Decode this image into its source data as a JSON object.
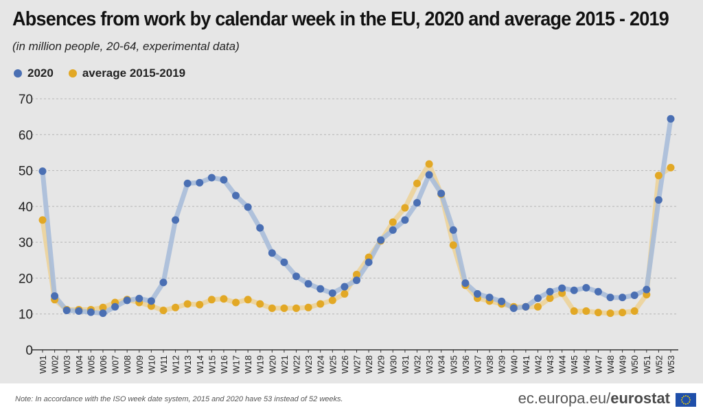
{
  "title": "Absences from work by calendar week in the EU, 2020 and average 2015 - 2019",
  "subtitle": "(in million people, 20-64, experimental data)",
  "note": "Note: In accordance with the ISO week date system, 2015 and 2020 have 53 instead of 52 weeks.",
  "brand": {
    "part1": "ec.europa.eu/",
    "part2": "eurostat"
  },
  "colors": {
    "s2020": "#4a6fb3",
    "avg": "#e2a825",
    "s2020_line": "#a9bcd9",
    "avg_line": "#ecd39a",
    "grid": "#b5b5b5"
  },
  "chart_data": {
    "type": "line",
    "title": "Absences from work by calendar week in the EU, 2020 and average 2015 - 2019",
    "xlabel": "",
    "ylabel": "",
    "ylim": [
      0,
      70
    ],
    "yticks": [
      0,
      10,
      20,
      30,
      40,
      50,
      60,
      70
    ],
    "grid": true,
    "legend": "top-left",
    "categories": [
      "W01",
      "W02",
      "W03",
      "W04",
      "W05",
      "W06",
      "W07",
      "W08",
      "W09",
      "W10",
      "W11",
      "W12",
      "W13",
      "W14",
      "W15",
      "W16",
      "W17",
      "W18",
      "W19",
      "W20",
      "W21",
      "W22",
      "W23",
      "W24",
      "W25",
      "W26",
      "W27",
      "W28",
      "W29",
      "W30",
      "W31",
      "W32",
      "W33",
      "W34",
      "W35",
      "W36",
      "W37",
      "W38",
      "W39",
      "W40",
      "W41",
      "W42",
      "W43",
      "W44",
      "W45",
      "W46",
      "W47",
      "W48",
      "W49",
      "W50",
      "W51",
      "W52",
      "W53"
    ],
    "series": [
      {
        "name": "2020",
        "values": [
          49.8,
          15,
          11,
          10.8,
          10.5,
          10.2,
          12,
          13.8,
          14.3,
          13.6,
          18.8,
          36.2,
          46.4,
          46.6,
          48,
          47.4,
          43,
          39.8,
          34,
          27,
          24.4,
          20.5,
          18.4,
          17,
          15.8,
          17.6,
          19.4,
          24.4,
          30.6,
          33.4,
          36.2,
          41,
          48.8,
          43.6,
          33.4,
          18.6,
          15.6,
          14.6,
          13.5,
          11.6,
          12,
          14.4,
          16.2,
          17.2,
          16.6,
          17.3,
          16.2,
          14.6,
          14.6,
          15.2,
          16.8,
          41.8,
          64.4
        ]
      },
      {
        "name": "average 2015-2019",
        "values": [
          36.2,
          14,
          11.2,
          11.2,
          11.2,
          11.8,
          13.2,
          14,
          13.2,
          12.2,
          11,
          11.8,
          12.8,
          12.6,
          14,
          14.2,
          13.2,
          14,
          12.8,
          11.6,
          11.6,
          11.6,
          11.8,
          12.8,
          13.8,
          15.6,
          21,
          25.8,
          30.4,
          35.6,
          39.6,
          46.4,
          51.8,
          43.4,
          29.2,
          18,
          14.4,
          13.6,
          12.8,
          12,
          12,
          12,
          14.4,
          15.8,
          10.8,
          10.8,
          10.4,
          10.2,
          10.4,
          10.8,
          15.4,
          48.6,
          50.8
        ]
      }
    ]
  }
}
